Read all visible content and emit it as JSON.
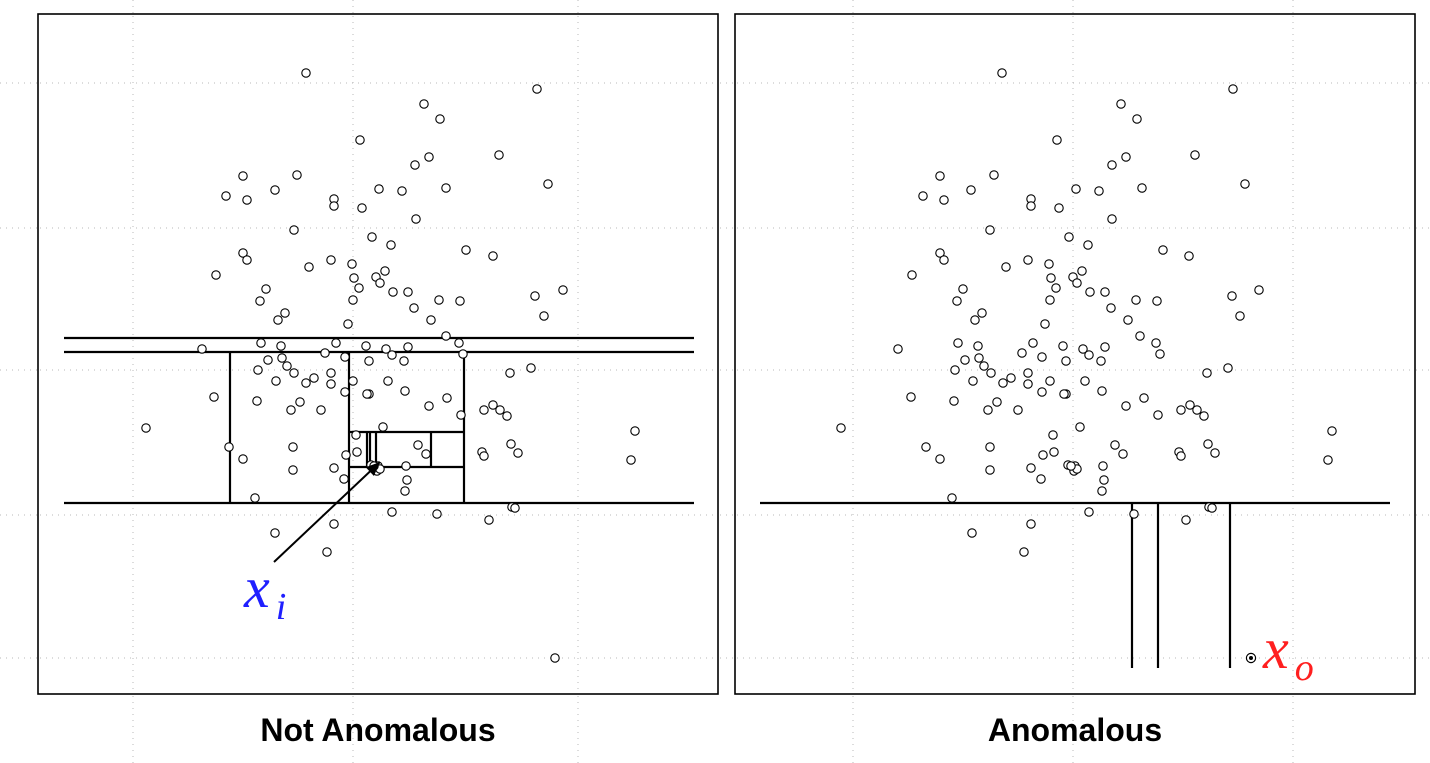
{
  "panels": [
    {
      "caption": "Not Anomalous",
      "point_label": {
        "base": "x",
        "sub": "i",
        "color": "#1f1fff"
      },
      "points": [
        [
          306,
          73
        ],
        [
          537,
          89
        ],
        [
          424,
          104
        ],
        [
          440,
          119
        ],
        [
          360,
          140
        ],
        [
          499,
          155
        ],
        [
          429,
          157
        ],
        [
          415,
          165
        ],
        [
          243,
          176
        ],
        [
          297,
          175
        ],
        [
          548,
          184
        ],
        [
          275,
          190
        ],
        [
          379,
          189
        ],
        [
          402,
          191
        ],
        [
          446,
          188
        ],
        [
          226,
          196
        ],
        [
          247,
          200
        ],
        [
          334,
          199
        ],
        [
          334,
          206
        ],
        [
          362,
          208
        ],
        [
          416,
          219
        ],
        [
          294,
          230
        ],
        [
          372,
          237
        ],
        [
          391,
          245
        ],
        [
          466,
          250
        ],
        [
          243,
          253
        ],
        [
          493,
          256
        ],
        [
          247,
          260
        ],
        [
          331,
          260
        ],
        [
          309,
          267
        ],
        [
          352,
          264
        ],
        [
          216,
          275
        ],
        [
          385,
          271
        ],
        [
          376,
          277
        ],
        [
          354,
          278
        ],
        [
          380,
          283
        ],
        [
          266,
          289
        ],
        [
          359,
          288
        ],
        [
          393,
          292
        ],
        [
          408,
          292
        ],
        [
          563,
          290
        ],
        [
          260,
          301
        ],
        [
          353,
          300
        ],
        [
          439,
          300
        ],
        [
          460,
          301
        ],
        [
          535,
          296
        ],
        [
          285,
          313
        ],
        [
          414,
          308
        ],
        [
          278,
          320
        ],
        [
          348,
          324
        ],
        [
          544,
          316
        ],
        [
          431,
          320
        ],
        [
          446,
          336
        ],
        [
          261,
          343
        ],
        [
          281,
          346
        ],
        [
          336,
          343
        ],
        [
          202,
          349
        ],
        [
          366,
          346
        ],
        [
          386,
          349
        ],
        [
          408,
          347
        ],
        [
          459,
          343
        ],
        [
          392,
          355
        ],
        [
          268,
          360
        ],
        [
          282,
          358
        ],
        [
          325,
          353
        ],
        [
          345,
          357
        ],
        [
          369,
          361
        ],
        [
          463,
          354
        ],
        [
          404,
          361
        ],
        [
          258,
          370
        ],
        [
          287,
          366
        ],
        [
          294,
          373
        ],
        [
          331,
          373
        ],
        [
          276,
          381
        ],
        [
          306,
          383
        ],
        [
          314,
          378
        ],
        [
          353,
          381
        ],
        [
          331,
          384
        ],
        [
          388,
          381
        ],
        [
          510,
          373
        ],
        [
          531,
          368
        ],
        [
          345,
          392
        ],
        [
          369,
          394
        ],
        [
          405,
          391
        ],
        [
          214,
          397
        ],
        [
          257,
          401
        ],
        [
          300,
          402
        ],
        [
          367,
          394
        ],
        [
          447,
          398
        ],
        [
          291,
          410
        ],
        [
          321,
          410
        ],
        [
          484,
          410
        ],
        [
          461,
          415
        ],
        [
          493,
          405
        ],
        [
          500,
          410
        ],
        [
          507,
          416
        ],
        [
          146,
          428
        ],
        [
          429,
          406
        ],
        [
          383,
          427
        ],
        [
          356,
          435
        ],
        [
          293,
          447
        ],
        [
          229,
          447
        ],
        [
          511,
          444
        ],
        [
          635,
          431
        ],
        [
          346,
          455
        ],
        [
          357,
          452
        ],
        [
          418,
          445
        ],
        [
          426,
          454
        ],
        [
          243,
          459
        ],
        [
          482,
          452
        ],
        [
          484,
          456
        ],
        [
          518,
          453
        ],
        [
          631,
          460
        ],
        [
          334,
          468
        ],
        [
          293,
          470
        ],
        [
          371,
          465
        ],
        [
          378,
          466
        ],
        [
          406,
          466
        ],
        [
          377,
          471
        ],
        [
          380,
          469
        ],
        [
          374,
          466
        ],
        [
          344,
          479
        ],
        [
          407,
          480
        ],
        [
          255,
          498
        ],
        [
          405,
          491
        ],
        [
          392,
          512
        ],
        [
          437,
          514
        ],
        [
          512,
          507
        ],
        [
          515,
          508
        ],
        [
          489,
          520
        ],
        [
          275,
          533
        ],
        [
          334,
          524
        ],
        [
          327,
          552
        ],
        [
          555,
          658
        ]
      ],
      "segments": [
        [
          64,
          338,
          694,
          338
        ],
        [
          64,
          352,
          694,
          352
        ],
        [
          64,
          503,
          694,
          503
        ],
        [
          230,
          352,
          230,
          503
        ],
        [
          464,
          352,
          464,
          503
        ],
        [
          349,
          352,
          349,
          503
        ],
        [
          349,
          432,
          464,
          432
        ],
        [
          349,
          467,
          464,
          467
        ],
        [
          431,
          432,
          431,
          467
        ],
        [
          367,
          432,
          367,
          467
        ],
        [
          376,
          432,
          376,
          467
        ],
        [
          370,
          432,
          370,
          467
        ]
      ],
      "arrow": {
        "from": [
          274,
          562
        ],
        "to": [
          380,
          462
        ]
      }
    },
    {
      "caption": "Anomalous",
      "point_label": {
        "base": "x",
        "sub": "o",
        "color": "#ff1f1f"
      },
      "points": [
        [
          1002,
          73
        ],
        [
          1233,
          89
        ],
        [
          1121,
          104
        ],
        [
          1137,
          119
        ],
        [
          1057,
          140
        ],
        [
          1195,
          155
        ],
        [
          1126,
          157
        ],
        [
          1112,
          165
        ],
        [
          940,
          176
        ],
        [
          994,
          175
        ],
        [
          1245,
          184
        ],
        [
          971,
          190
        ],
        [
          1076,
          189
        ],
        [
          1099,
          191
        ],
        [
          1142,
          188
        ],
        [
          923,
          196
        ],
        [
          944,
          200
        ],
        [
          1031,
          199
        ],
        [
          1031,
          206
        ],
        [
          1059,
          208
        ],
        [
          1112,
          219
        ],
        [
          990,
          230
        ],
        [
          1069,
          237
        ],
        [
          1088,
          245
        ],
        [
          1163,
          250
        ],
        [
          940,
          253
        ],
        [
          1189,
          256
        ],
        [
          944,
          260
        ],
        [
          1028,
          260
        ],
        [
          1006,
          267
        ],
        [
          1049,
          264
        ],
        [
          912,
          275
        ],
        [
          1082,
          271
        ],
        [
          1073,
          277
        ],
        [
          1051,
          278
        ],
        [
          1077,
          283
        ],
        [
          963,
          289
        ],
        [
          1056,
          288
        ],
        [
          1090,
          292
        ],
        [
          1105,
          292
        ],
        [
          1259,
          290
        ],
        [
          957,
          301
        ],
        [
          1050,
          300
        ],
        [
          1136,
          300
        ],
        [
          1157,
          301
        ],
        [
          1232,
          296
        ],
        [
          982,
          313
        ],
        [
          1111,
          308
        ],
        [
          975,
          320
        ],
        [
          1045,
          324
        ],
        [
          1240,
          316
        ],
        [
          1128,
          320
        ],
        [
          1140,
          336
        ],
        [
          958,
          343
        ],
        [
          978,
          346
        ],
        [
          1033,
          343
        ],
        [
          898,
          349
        ],
        [
          1063,
          346
        ],
        [
          1083,
          349
        ],
        [
          1105,
          347
        ],
        [
          1156,
          343
        ],
        [
          1089,
          355
        ],
        [
          965,
          360
        ],
        [
          979,
          358
        ],
        [
          1022,
          353
        ],
        [
          1042,
          357
        ],
        [
          1066,
          361
        ],
        [
          1160,
          354
        ],
        [
          1101,
          361
        ],
        [
          955,
          370
        ],
        [
          984,
          366
        ],
        [
          991,
          373
        ],
        [
          1028,
          373
        ],
        [
          973,
          381
        ],
        [
          1003,
          383
        ],
        [
          1011,
          378
        ],
        [
          1050,
          381
        ],
        [
          1028,
          384
        ],
        [
          1085,
          381
        ],
        [
          1207,
          373
        ],
        [
          1228,
          368
        ],
        [
          1042,
          392
        ],
        [
          1066,
          394
        ],
        [
          1102,
          391
        ],
        [
          911,
          397
        ],
        [
          954,
          401
        ],
        [
          997,
          402
        ],
        [
          1064,
          394
        ],
        [
          1144,
          398
        ],
        [
          988,
          410
        ],
        [
          1018,
          410
        ],
        [
          1181,
          410
        ],
        [
          1158,
          415
        ],
        [
          1190,
          405
        ],
        [
          1197,
          410
        ],
        [
          1204,
          416
        ],
        [
          841,
          428
        ],
        [
          1126,
          406
        ],
        [
          1080,
          427
        ],
        [
          1053,
          435
        ],
        [
          990,
          447
        ],
        [
          926,
          447
        ],
        [
          1208,
          444
        ],
        [
          1332,
          431
        ],
        [
          1043,
          455
        ],
        [
          1054,
          452
        ],
        [
          1115,
          445
        ],
        [
          1123,
          454
        ],
        [
          940,
          459
        ],
        [
          1179,
          452
        ],
        [
          1181,
          456
        ],
        [
          1215,
          453
        ],
        [
          1328,
          460
        ],
        [
          1031,
          468
        ],
        [
          990,
          470
        ],
        [
          1068,
          465
        ],
        [
          1075,
          466
        ],
        [
          1103,
          466
        ],
        [
          1074,
          471
        ],
        [
          1077,
          469
        ],
        [
          1071,
          466
        ],
        [
          1041,
          479
        ],
        [
          1104,
          480
        ],
        [
          952,
          498
        ],
        [
          1102,
          491
        ],
        [
          1089,
          512
        ],
        [
          1134,
          514
        ],
        [
          1209,
          507
        ],
        [
          1212,
          508
        ],
        [
          1186,
          520
        ],
        [
          972,
          533
        ],
        [
          1031,
          524
        ],
        [
          1024,
          552
        ]
      ],
      "segments": [
        [
          760,
          503,
          1390,
          503
        ],
        [
          1132,
          503,
          1132,
          668
        ],
        [
          1158,
          503,
          1158,
          668
        ],
        [
          1230,
          503,
          1230,
          668
        ]
      ],
      "outlier": [
        1251,
        658
      ]
    }
  ]
}
